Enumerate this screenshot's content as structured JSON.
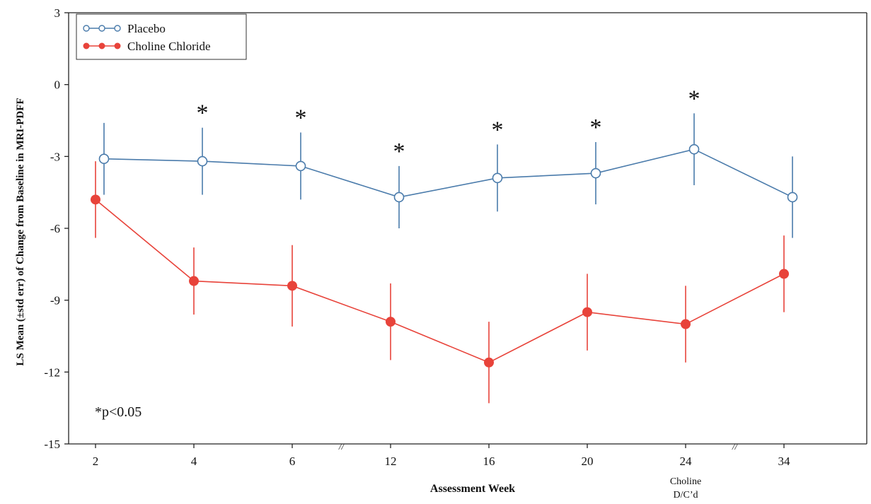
{
  "chart_data": {
    "type": "line",
    "title": "",
    "xlabel": "Assessment Week",
    "ylabel": "LS Mean (±std err) of Change from Baseline in MRI-PDFF",
    "ylim": [
      -15,
      3
    ],
    "yticks": [
      3,
      0,
      -3,
      -6,
      -9,
      -12,
      -15
    ],
    "yticklabels": [
      "3",
      "0",
      "-3",
      "-6",
      "-9",
      "-12",
      "-15"
    ],
    "categories": [
      "2",
      "4",
      "6",
      "12",
      "16",
      "20",
      "24",
      "34"
    ],
    "xtick_sublabel": {
      "category_index": 6,
      "lines": [
        "Choline",
        "D/C’d"
      ]
    },
    "axis_breaks": [
      {
        "between": [
          "6",
          "12"
        ],
        "symbol": "//"
      },
      {
        "between": [
          "24",
          "34"
        ],
        "symbol": "//"
      }
    ],
    "series": [
      {
        "name": "Placebo",
        "color": "#4a7bab",
        "marker": "open-circle",
        "values": [
          -3.1,
          -3.2,
          -3.4,
          -4.7,
          -3.9,
          -3.7,
          -2.7,
          -4.7
        ],
        "err": [
          1.5,
          1.4,
          1.4,
          1.3,
          1.4,
          1.3,
          1.5,
          1.7
        ]
      },
      {
        "name": "Choline Chloride",
        "color": "#e8433a",
        "marker": "filled-circle",
        "values": [
          -4.8,
          -8.2,
          -8.4,
          -9.9,
          -11.6,
          -9.5,
          -10.0,
          -7.9
        ],
        "err": [
          1.6,
          1.4,
          1.7,
          1.6,
          1.7,
          1.6,
          1.6,
          1.6
        ]
      }
    ],
    "significance": {
      "marker": "*",
      "category_indices": [
        1,
        2,
        3,
        4,
        5,
        6
      ],
      "note": "*p<0.05"
    },
    "legend": "top-left",
    "grid": false
  }
}
